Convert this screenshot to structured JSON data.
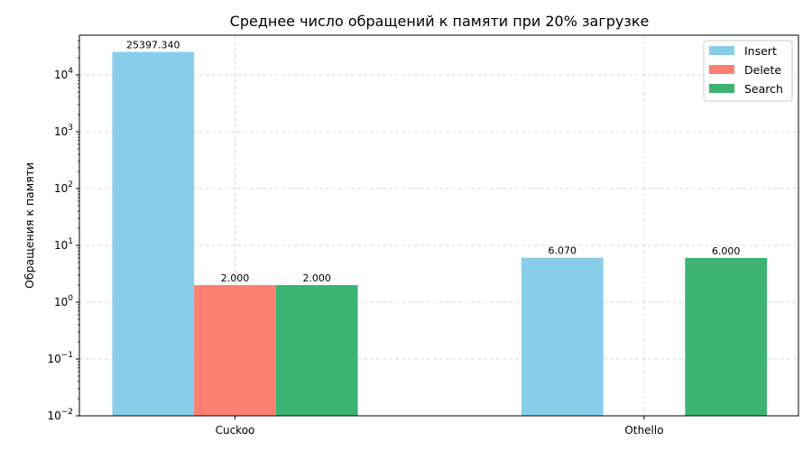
{
  "chart_data": {
    "type": "bar",
    "title": "Среднее число обращений к памяти при 20% загрузке",
    "xlabel": "",
    "ylabel": "Обращения к памяти",
    "yscale": "log",
    "ylim": [
      0.01,
      50000
    ],
    "grid": true,
    "legend_position": "top-right",
    "categories": [
      "Cuckoo",
      "Othello"
    ],
    "series": [
      {
        "name": "Insert",
        "color": "#87CEEB",
        "values": [
          25397.34,
          6.07
        ],
        "labels": [
          "25397.340",
          "6.070"
        ]
      },
      {
        "name": "Delete",
        "color": "#FA8072",
        "values": [
          2.0,
          null
        ],
        "labels": [
          "2.000",
          ""
        ]
      },
      {
        "name": "Search",
        "color": "#3CB371",
        "values": [
          2.0,
          6.0
        ],
        "labels": [
          "2.000",
          "6.000"
        ]
      }
    ],
    "yticks": [
      {
        "value": 0.01,
        "base": "10",
        "exp": "−2"
      },
      {
        "value": 0.1,
        "base": "10",
        "exp": "−1"
      },
      {
        "value": 1,
        "base": "10",
        "exp": "0"
      },
      {
        "value": 10,
        "base": "10",
        "exp": "1"
      },
      {
        "value": 100,
        "base": "10",
        "exp": "2"
      },
      {
        "value": 1000,
        "base": "10",
        "exp": "3"
      },
      {
        "value": 10000,
        "base": "10",
        "exp": "4"
      }
    ]
  }
}
